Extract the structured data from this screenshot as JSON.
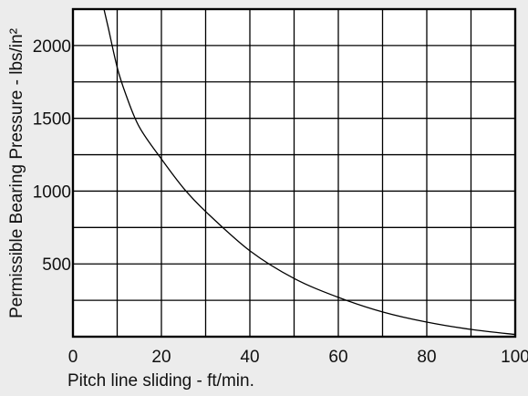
{
  "chart_data": {
    "type": "line",
    "xlabel": "Pitch line sliding - ft/min.",
    "ylabel": "Permissible Bearing Pressure - lbs/in²",
    "xlim": [
      0,
      100
    ],
    "ylim": [
      0,
      2250
    ],
    "x_ticks": [
      0,
      20,
      40,
      60,
      80,
      100
    ],
    "x_tick_labels": [
      "0",
      "20",
      "40",
      "60",
      "80",
      "100"
    ],
    "y_ticks": [
      500,
      1000,
      1500,
      2000
    ],
    "y_tick_labels": [
      "500",
      "1000",
      "1500",
      "2000"
    ],
    "grid": true,
    "series": [
      {
        "x": [
          7,
          8,
          10,
          12,
          15,
          20,
          25,
          30,
          40,
          50,
          60,
          70,
          80,
          90,
          100
        ],
        "y": [
          2250,
          2120,
          1850,
          1660,
          1440,
          1220,
          1020,
          860,
          590,
          400,
          270,
          170,
          100,
          50,
          15
        ]
      }
    ]
  }
}
